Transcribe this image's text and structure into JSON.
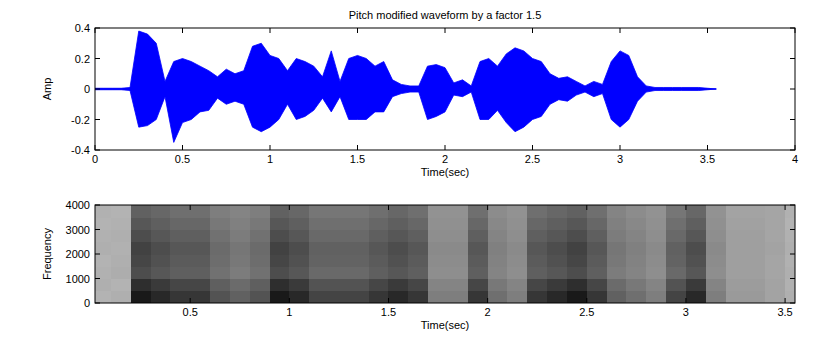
{
  "chart_data": [
    {
      "type": "area",
      "title": "Pitch modified waveform by a factor 1.5",
      "x_label": "Time(sec)",
      "y_label": "Amp",
      "xlim": [
        0,
        4
      ],
      "ylim": [
        -0.4,
        0.4
      ],
      "xticks": [
        0,
        0.5,
        1,
        1.5,
        2,
        2.5,
        3,
        3.5,
        4
      ],
      "yticks": [
        -0.4,
        -0.2,
        0,
        0.2,
        0.4
      ],
      "x": [
        0,
        0.05,
        0.1,
        0.15,
        0.2,
        0.25,
        0.3,
        0.35,
        0.4,
        0.45,
        0.5,
        0.55,
        0.6,
        0.65,
        0.7,
        0.75,
        0.8,
        0.85,
        0.9,
        0.95,
        1.0,
        1.05,
        1.1,
        1.15,
        1.2,
        1.25,
        1.3,
        1.35,
        1.4,
        1.45,
        1.5,
        1.55,
        1.6,
        1.65,
        1.7,
        1.75,
        1.8,
        1.85,
        1.9,
        1.95,
        2.0,
        2.05,
        2.1,
        2.15,
        2.2,
        2.25,
        2.3,
        2.35,
        2.4,
        2.45,
        2.5,
        2.55,
        2.6,
        2.65,
        2.7,
        2.75,
        2.8,
        2.85,
        2.9,
        2.95,
        3.0,
        3.05,
        3.1,
        3.15,
        3.2,
        3.25,
        3.3,
        3.35,
        3.4,
        3.45,
        3.5,
        3.55
      ],
      "series": [
        {
          "color": "#0000ff",
          "values": [
            0.005,
            0.005,
            0.005,
            0.005,
            0.01,
            0.38,
            0.36,
            0.3,
            0.05,
            0.18,
            0.2,
            0.18,
            0.15,
            0.12,
            0.08,
            0.13,
            0.1,
            0.12,
            0.28,
            0.3,
            0.22,
            0.2,
            0.12,
            0.2,
            0.18,
            0.15,
            0.08,
            0.25,
            0.05,
            0.2,
            0.22,
            0.2,
            0.15,
            0.18,
            0.06,
            0.03,
            0.02,
            0.02,
            0.15,
            0.16,
            0.14,
            0.04,
            0.06,
            0.02,
            0.18,
            0.2,
            0.15,
            0.23,
            0.27,
            0.25,
            0.2,
            0.18,
            0.1,
            0.07,
            0.08,
            0.05,
            0.02,
            0.05,
            0.03,
            0.18,
            0.25,
            0.22,
            0.08,
            0.02,
            0.01,
            0.01,
            0.01,
            0.01,
            0.01,
            0.01,
            0.005,
            0
          ]
        },
        {
          "color": "#0000ff",
          "values": [
            -0.005,
            -0.005,
            -0.005,
            -0.005,
            -0.01,
            -0.25,
            -0.24,
            -0.2,
            -0.05,
            -0.35,
            -0.22,
            -0.2,
            -0.15,
            -0.14,
            -0.06,
            -0.1,
            -0.08,
            -0.1,
            -0.25,
            -0.28,
            -0.25,
            -0.2,
            -0.1,
            -0.2,
            -0.18,
            -0.14,
            -0.06,
            -0.15,
            -0.05,
            -0.2,
            -0.2,
            -0.2,
            -0.15,
            -0.15,
            -0.05,
            -0.03,
            -0.02,
            -0.02,
            -0.2,
            -0.18,
            -0.15,
            -0.04,
            -0.05,
            -0.02,
            -0.2,
            -0.2,
            -0.14,
            -0.22,
            -0.28,
            -0.25,
            -0.2,
            -0.18,
            -0.1,
            -0.07,
            -0.08,
            -0.04,
            -0.02,
            -0.05,
            -0.03,
            -0.2,
            -0.25,
            -0.2,
            -0.08,
            -0.02,
            -0.01,
            -0.01,
            -0.01,
            -0.01,
            -0.01,
            -0.01,
            -0.005,
            0
          ]
        }
      ]
    },
    {
      "type": "heatmap",
      "x_label": "Time(sec)",
      "y_label": "Frequency",
      "xlim": [
        0.02,
        3.55
      ],
      "ylim": [
        0,
        4000
      ],
      "xticks": [
        0.5,
        1,
        1.5,
        2,
        2.5,
        3,
        3.5
      ],
      "yticks": [
        0,
        1000,
        2000,
        3000,
        4000
      ],
      "x": [
        0.05,
        0.15,
        0.25,
        0.35,
        0.45,
        0.55,
        0.65,
        0.75,
        0.85,
        0.95,
        1.05,
        1.15,
        1.25,
        1.35,
        1.45,
        1.55,
        1.65,
        1.75,
        1.85,
        1.95,
        2.05,
        2.15,
        2.25,
        2.35,
        2.45,
        2.55,
        2.65,
        2.75,
        2.85,
        2.95,
        3.05,
        3.15,
        3.25,
        3.35,
        3.45,
        3.55
      ],
      "y": [
        250,
        750,
        1250,
        1750,
        2250,
        2750,
        3250,
        3750
      ],
      "zlim": [
        0,
        100
      ],
      "cells": [
        [
          20,
          22,
          95,
          88,
          81,
          81,
          67,
          60,
          67,
          95,
          88,
          74,
          74,
          74,
          81,
          88,
          81,
          46,
          46,
          81,
          53,
          46,
          81,
          88,
          95,
          81,
          60,
          53,
          46,
          74,
          88,
          46,
          32,
          32,
          28,
          22
        ],
        [
          22,
          20,
          85,
          79,
          73,
          73,
          61,
          55,
          61,
          85,
          79,
          67,
          67,
          67,
          73,
          79,
          73,
          43,
          43,
          73,
          49,
          43,
          73,
          79,
          85,
          73,
          55,
          49,
          43,
          67,
          79,
          43,
          31,
          31,
          28,
          21
        ],
        [
          21,
          23,
          70,
          65,
          61,
          61,
          52,
          47,
          52,
          70,
          65,
          56,
          56,
          56,
          61,
          65,
          61,
          38,
          38,
          61,
          43,
          38,
          61,
          65,
          70,
          61,
          47,
          43,
          38,
          56,
          65,
          38,
          30,
          30,
          27,
          22
        ],
        [
          20,
          22,
          73,
          68,
          63,
          63,
          54,
          49,
          54,
          73,
          68,
          59,
          59,
          59,
          63,
          68,
          63,
          39,
          39,
          63,
          44,
          39,
          63,
          68,
          73,
          63,
          49,
          44,
          39,
          59,
          68,
          39,
          30,
          30,
          27,
          21
        ],
        [
          22,
          21,
          75,
          70,
          65,
          65,
          55,
          50,
          55,
          75,
          70,
          60,
          60,
          60,
          65,
          70,
          65,
          40,
          40,
          65,
          45,
          40,
          65,
          70,
          75,
          65,
          50,
          45,
          40,
          60,
          70,
          40,
          30,
          30,
          28,
          22
        ],
        [
          21,
          22,
          70,
          65,
          61,
          61,
          52,
          47,
          52,
          70,
          65,
          56,
          56,
          56,
          61,
          65,
          61,
          38,
          38,
          61,
          43,
          38,
          61,
          65,
          70,
          61,
          47,
          43,
          38,
          56,
          65,
          38,
          30,
          30,
          27,
          21
        ],
        [
          20,
          21,
          65,
          61,
          57,
          57,
          49,
          45,
          49,
          65,
          61,
          53,
          53,
          53,
          57,
          61,
          57,
          37,
          37,
          57,
          41,
          37,
          57,
          61,
          65,
          57,
          45,
          41,
          37,
          53,
          61,
          37,
          29,
          29,
          27,
          20
        ],
        [
          21,
          20,
          60,
          57,
          53,
          53,
          46,
          43,
          46,
          60,
          57,
          50,
          50,
          50,
          53,
          57,
          53,
          36,
          36,
          53,
          39,
          36,
          53,
          57,
          60,
          53,
          43,
          39,
          36,
          50,
          57,
          36,
          28,
          28,
          27,
          21
        ]
      ]
    }
  ]
}
